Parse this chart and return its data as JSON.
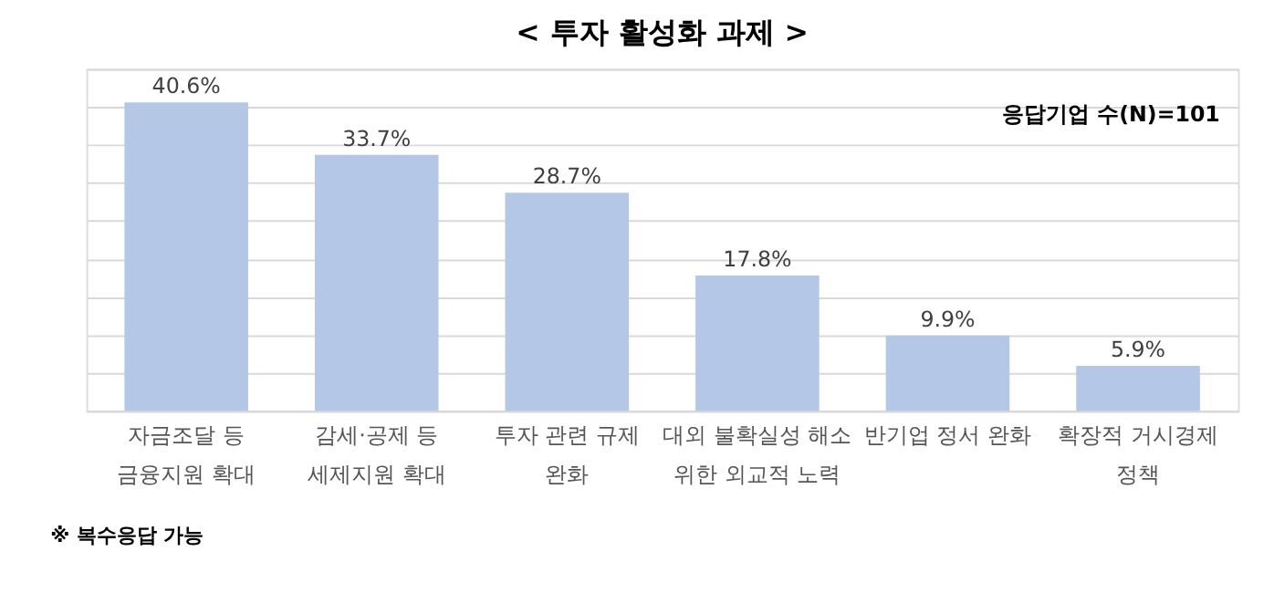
{
  "chart_data": {
    "type": "bar",
    "title": "< 투자 활성화 과제 >",
    "categories": [
      "자금조달 등\n금융지원 확대",
      "감세·공제 등\n세제지원 확대",
      "투자 관련 규제\n완화",
      "대외 불확실성 해소\n위한 외교적 노력",
      "반기업 정서 완화",
      "확장적 거시경제\n정책"
    ],
    "values": [
      40.6,
      33.7,
      28.7,
      17.8,
      9.9,
      5.9
    ],
    "value_labels": [
      "40.6%",
      "33.7%",
      "28.7%",
      "17.8%",
      "9.9%",
      "5.9%"
    ],
    "color": "#b4c7e7",
    "ylim": [
      0,
      45
    ],
    "grid": "y",
    "tick_labels": "x",
    "annotations": [
      "응답기업 수(N)=101",
      "※ 복수응답 가능"
    ]
  }
}
